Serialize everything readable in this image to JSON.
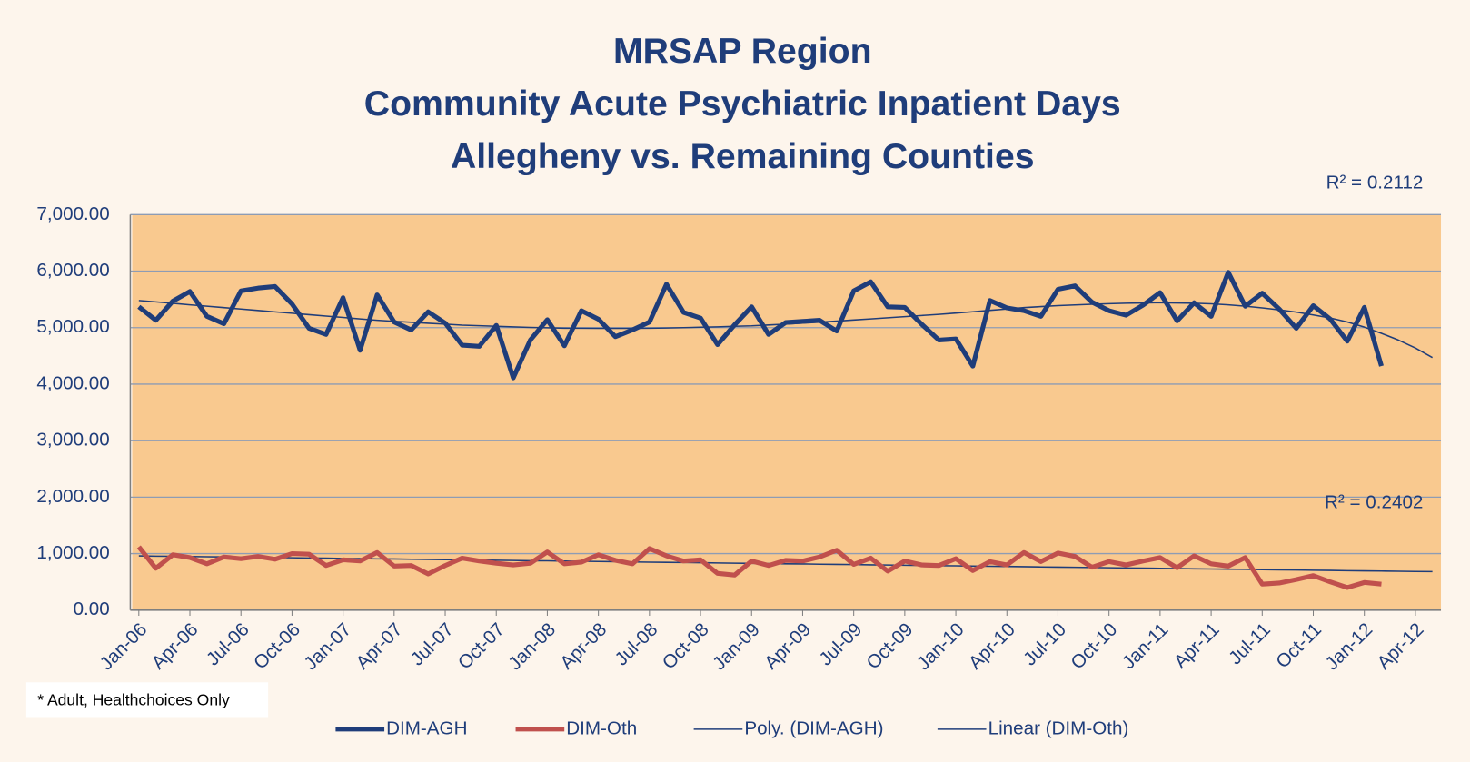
{
  "chart_data": {
    "type": "line",
    "title": [
      "MRSAP Region",
      "Community Acute Psychiatric Inpatient Days",
      "Allegheny vs. Remaining Counties"
    ],
    "annotations": [
      "R² = 0.2112",
      "R² = 0.2402"
    ],
    "footnote": "* Adult, Healthchoices Only",
    "categories": [
      "Jan-06",
      null,
      null,
      "Apr-06",
      null,
      null,
      "Jul-06",
      null,
      null,
      "Oct-06",
      null,
      null,
      "Jan-07",
      null,
      null,
      "Apr-07",
      null,
      null,
      "Jul-07",
      null,
      null,
      "Oct-07",
      null,
      null,
      "Jan-08",
      null,
      null,
      "Apr-08",
      null,
      null,
      "Jul-08",
      null,
      null,
      "Oct-08",
      null,
      null,
      "Jan-09",
      null,
      null,
      "Apr-09",
      null,
      null,
      "Jul-09",
      null,
      null,
      "Oct-09",
      null,
      null,
      "Jan-10",
      null,
      null,
      "Apr-10",
      null,
      null,
      "Jul-10",
      null,
      null,
      "Oct-10",
      null,
      null,
      "Jan-11",
      null,
      null,
      "Apr-11",
      null,
      null,
      "Jul-11",
      null,
      null,
      "Oct-11",
      null,
      null,
      "Jan-12",
      null,
      null,
      "Apr-12",
      null
    ],
    "series": [
      {
        "name": "DIM-AGH",
        "color": "#1f3d7a",
        "line_width": 5,
        "values": [
          5370,
          5130,
          5470,
          5640,
          5200,
          5070,
          5650,
          5700,
          5730,
          5420,
          4990,
          4880,
          5530,
          4600,
          5580,
          5100,
          4960,
          5280,
          5080,
          4690,
          4670,
          5040,
          4110,
          4780,
          5140,
          4680,
          5300,
          5150,
          4840,
          4960,
          5100,
          5770,
          5270,
          5170,
          4700,
          5050,
          5370,
          4880,
          5090,
          5110,
          5130,
          4940,
          5650,
          5810,
          5370,
          5360,
          5060,
          4780,
          4800,
          4320,
          5480,
          5350,
          5300,
          5200,
          5680,
          5740,
          5450,
          5300,
          5220,
          5400,
          5620,
          5120,
          5440,
          5200,
          5980,
          5380,
          5610,
          5330,
          4990,
          5390,
          5150,
          4760,
          5360,
          4320,
          null,
          null,
          null
        ]
      },
      {
        "name": "DIM-Oth",
        "color": "#c0504d",
        "line_width": 5,
        "values": [
          1120,
          740,
          980,
          930,
          820,
          940,
          910,
          950,
          900,
          1000,
          990,
          790,
          890,
          870,
          1020,
          780,
          790,
          640,
          790,
          920,
          870,
          830,
          800,
          830,
          1030,
          820,
          850,
          980,
          880,
          820,
          1090,
          960,
          870,
          890,
          650,
          620,
          870,
          790,
          880,
          870,
          940,
          1060,
          810,
          920,
          690,
          870,
          800,
          790,
          910,
          700,
          860,
          800,
          1020,
          860,
          1010,
          950,
          760,
          860,
          800,
          870,
          930,
          750,
          960,
          820,
          780,
          930,
          460,
          480,
          540,
          610,
          500,
          400,
          490,
          460,
          null,
          null,
          null
        ]
      },
      {
        "name": "Poly. (DIM-AGH)",
        "color": "#1f3d7a",
        "line_width": 1.5,
        "values": [
          5480,
          5455,
          5430,
          5405,
          5380,
          5355,
          5330,
          5305,
          5280,
          5255,
          5230,
          5205,
          5180,
          5155,
          5130,
          5112,
          5095,
          5078,
          5062,
          5045,
          5035,
          5025,
          5015,
          5005,
          4998,
          4992,
          4990,
          4988,
          4988,
          4988,
          4990,
          4994,
          5000,
          5007,
          5015,
          5024,
          5033,
          5048,
          5063,
          5080,
          5098,
          5116,
          5135,
          5155,
          5175,
          5195,
          5215,
          5235,
          5258,
          5282,
          5306,
          5330,
          5354,
          5373,
          5390,
          5403,
          5415,
          5424,
          5432,
          5437,
          5440,
          5438,
          5432,
          5422,
          5405,
          5380,
          5350,
          5315,
          5275,
          5225,
          5170,
          5100,
          5010,
          4900,
          4780,
          4640,
          4470
        ]
      },
      {
        "name": "Linear (DIM-Oth)",
        "color": "#1f3d7a",
        "line_width": 1.5,
        "values": [
          960,
          956,
          953,
          949,
          945,
          942,
          938,
          934,
          931,
          927,
          923,
          920,
          916,
          912,
          908,
          905,
          901,
          897,
          894,
          890,
          886,
          883,
          879,
          875,
          872,
          868,
          864,
          861,
          857,
          853,
          850,
          846,
          842,
          839,
          835,
          831,
          828,
          824,
          820,
          817,
          813,
          809,
          806,
          802,
          798,
          795,
          791,
          787,
          784,
          780,
          776,
          773,
          769,
          765,
          762,
          758,
          754,
          750,
          747,
          743,
          739,
          736,
          732,
          728,
          725,
          721,
          717,
          714,
          710,
          706,
          703,
          699,
          695,
          692,
          688,
          684,
          681
        ]
      }
    ],
    "ylim": [
      0,
      7000
    ],
    "yticks": [
      {
        "value": 0,
        "label": "0.00"
      },
      {
        "value": 1000,
        "label": "1,000.00"
      },
      {
        "value": 2000,
        "label": "2,000.00"
      },
      {
        "value": 3000,
        "label": "3,000.00"
      },
      {
        "value": 4000,
        "label": "4,000.00"
      },
      {
        "value": 5000,
        "label": "5,000.00"
      },
      {
        "value": 6000,
        "label": "6,000.00"
      },
      {
        "value": 7000,
        "label": "7,000.00"
      }
    ],
    "grid": true,
    "legend": "bottom"
  }
}
